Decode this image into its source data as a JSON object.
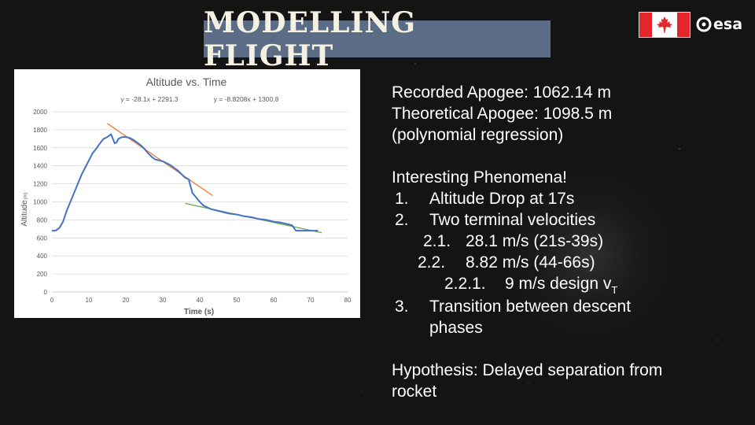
{
  "header": {
    "title": "MODELLING FLIGHT",
    "logo_text": "esa"
  },
  "chart_data": {
    "type": "line",
    "title": "Altitude vs. Time",
    "xlabel": "Time (s)",
    "ylabel": "Altitude",
    "ylabel_unit": "(m)",
    "xlim": [
      0,
      80
    ],
    "ylim": [
      0,
      2000
    ],
    "x_ticks": [
      0,
      10,
      20,
      30,
      40,
      50,
      60,
      70,
      80
    ],
    "y_ticks": [
      0,
      200,
      400,
      600,
      800,
      1000,
      1200,
      1400,
      1600,
      1800,
      2000
    ],
    "grid": "horizontal",
    "equations": [
      "y = -28.1x + 2291.3",
      "y = -8.8208x + 1300.8"
    ],
    "series": [
      {
        "color": "#4472c4",
        "points": [
          [
            0,
            680
          ],
          [
            1,
            680
          ],
          [
            2,
            710
          ],
          [
            3,
            780
          ],
          [
            4,
            900
          ],
          [
            5,
            1000
          ],
          [
            6,
            1100
          ],
          [
            7,
            1200
          ],
          [
            8,
            1300
          ],
          [
            9,
            1380
          ],
          [
            10,
            1460
          ],
          [
            11,
            1540
          ],
          [
            12,
            1590
          ],
          [
            13,
            1650
          ],
          [
            14,
            1700
          ],
          [
            15,
            1720
          ],
          [
            16,
            1750
          ],
          [
            16.5,
            1700
          ],
          [
            17,
            1650
          ],
          [
            17.5,
            1660
          ],
          [
            18,
            1700
          ],
          [
            19,
            1720
          ],
          [
            20,
            1720
          ],
          [
            21,
            1710
          ],
          [
            22,
            1690
          ],
          [
            23,
            1660
          ],
          [
            24,
            1630
          ],
          [
            25,
            1590
          ],
          [
            26,
            1540
          ],
          [
            27,
            1500
          ],
          [
            28,
            1470
          ],
          [
            29,
            1460
          ],
          [
            30,
            1450
          ],
          [
            31,
            1430
          ],
          [
            32,
            1410
          ],
          [
            33,
            1380
          ],
          [
            34,
            1350
          ],
          [
            35,
            1310
          ],
          [
            36,
            1270
          ],
          [
            37,
            1250
          ],
          [
            38,
            1100
          ],
          [
            39,
            1050
          ],
          [
            40,
            1000
          ],
          [
            41,
            960
          ],
          [
            42,
            940
          ],
          [
            43,
            920
          ],
          [
            44,
            910
          ],
          [
            46,
            890
          ],
          [
            48,
            870
          ],
          [
            50,
            860
          ],
          [
            52,
            840
          ],
          [
            54,
            830
          ],
          [
            56,
            810
          ],
          [
            58,
            800
          ],
          [
            60,
            780
          ],
          [
            62,
            770
          ],
          [
            64,
            750
          ],
          [
            65,
            740
          ],
          [
            66,
            680
          ],
          [
            68,
            680
          ],
          [
            70,
            680
          ],
          [
            72,
            680
          ]
        ]
      }
    ],
    "trendlines": [
      {
        "color": "#ed7d31",
        "slope": -28.1,
        "intercept": 2291.3,
        "x_range": [
          15,
          43.5
        ]
      },
      {
        "color": "#70ad47",
        "slope": -8.8208,
        "intercept": 1300.8,
        "x_range": [
          36,
          73
        ]
      }
    ]
  },
  "panel": {
    "recorded": "Recorded Apogee: 1062.14 m",
    "theoretical": "Theoretical Apogee: 1098.5 m",
    "theoretical_note": "(polynomial regression)",
    "phenomena_heading": "Interesting Phenomena!",
    "items": {
      "i1_num": "1.",
      "i1_text": "Altitude Drop at 17s",
      "i2_num": "2.",
      "i2_text": "Two terminal velocities",
      "i21_num": "2.1.",
      "i21_text": "28.1 m/s (21s-39s)",
      "i22_num": "2.2.",
      "i22_text": "8.82 m/s (44-66s)",
      "i221_num": "2.2.1.",
      "i221_text": "9 m/s design v",
      "i221_sub": "T",
      "i3_num": "3.",
      "i3_text_1": "Transition between descent",
      "i3_text_2": "phases"
    },
    "hypothesis_1": "Hypothesis: Delayed separation from",
    "hypothesis_2": "rocket"
  }
}
